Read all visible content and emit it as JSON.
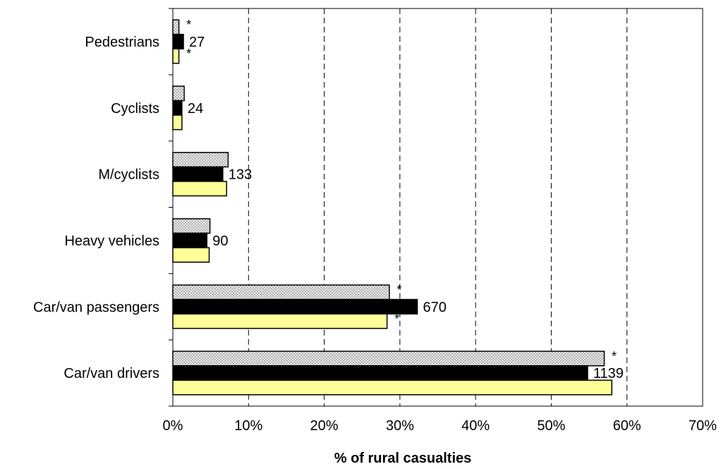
{
  "chart_data": {
    "type": "bar",
    "orientation": "horizontal",
    "categories": [
      "Pedestrians",
      "Cyclists",
      "M/cyclists",
      "Heavy vehicles",
      "Car/van passengers",
      "Car/van drivers"
    ],
    "series": [
      {
        "values": [
          0.8,
          1.5,
          7.3,
          4.9,
          28.6,
          57.0
        ],
        "color": "#e0e0e0",
        "pattern": "dotted"
      },
      {
        "values": [
          1.4,
          1.2,
          6.6,
          4.5,
          32.3,
          54.8
        ],
        "color": "#000000"
      },
      {
        "values": [
          0.8,
          1.2,
          7.1,
          4.8,
          28.3,
          58.0
        ],
        "color": "#ffff99"
      }
    ],
    "value_labels": [
      "27",
      "24",
      "133",
      "90",
      "670",
      "1139"
    ],
    "significance_markers": [
      [
        "*",
        "",
        "*"
      ],
      [
        "",
        "",
        ""
      ],
      [
        "",
        "",
        ""
      ],
      [
        "",
        "",
        ""
      ],
      [
        "*",
        "",
        "*"
      ],
      [
        "*",
        "",
        ""
      ]
    ],
    "xlabel": "% of rural casualties",
    "xlim": [
      0,
      70
    ],
    "xticks": [
      0,
      10,
      20,
      30,
      40,
      50,
      60,
      70
    ],
    "tick_suffix": "%",
    "grid": "vertical-dashed"
  }
}
